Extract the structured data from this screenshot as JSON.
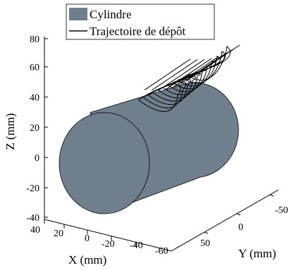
{
  "chart_data": {
    "type": "3d-line",
    "legend": {
      "placement": "top",
      "entries": [
        {
          "name": "Cylindre",
          "color": "#6f7f8d",
          "kind": "patch"
        },
        {
          "name": "Trajectoire de dépôt",
          "color": "#000000",
          "kind": "line"
        }
      ]
    },
    "axes": {
      "x": {
        "label": "X (mm)",
        "ticks": [
          "40",
          "20",
          "0",
          "-20",
          "-40",
          "-60"
        ],
        "range": [
          -60,
          40
        ]
      },
      "y": {
        "label": "Y (mm)",
        "ticks": [
          "-50",
          "0",
          "50"
        ],
        "range": [
          -70,
          70
        ]
      },
      "z": {
        "label": "Z (mm)",
        "ticks": [
          "80",
          "60",
          "40",
          "20",
          "0",
          "-20",
          "-40"
        ],
        "range": [
          -40,
          80
        ]
      }
    },
    "cylinder": {
      "axis": "y",
      "radius": 25,
      "y_range": [
        -70,
        70
      ],
      "face_color": "#6f7f8d"
    },
    "trajectory": {
      "description_levels": 11
    }
  }
}
